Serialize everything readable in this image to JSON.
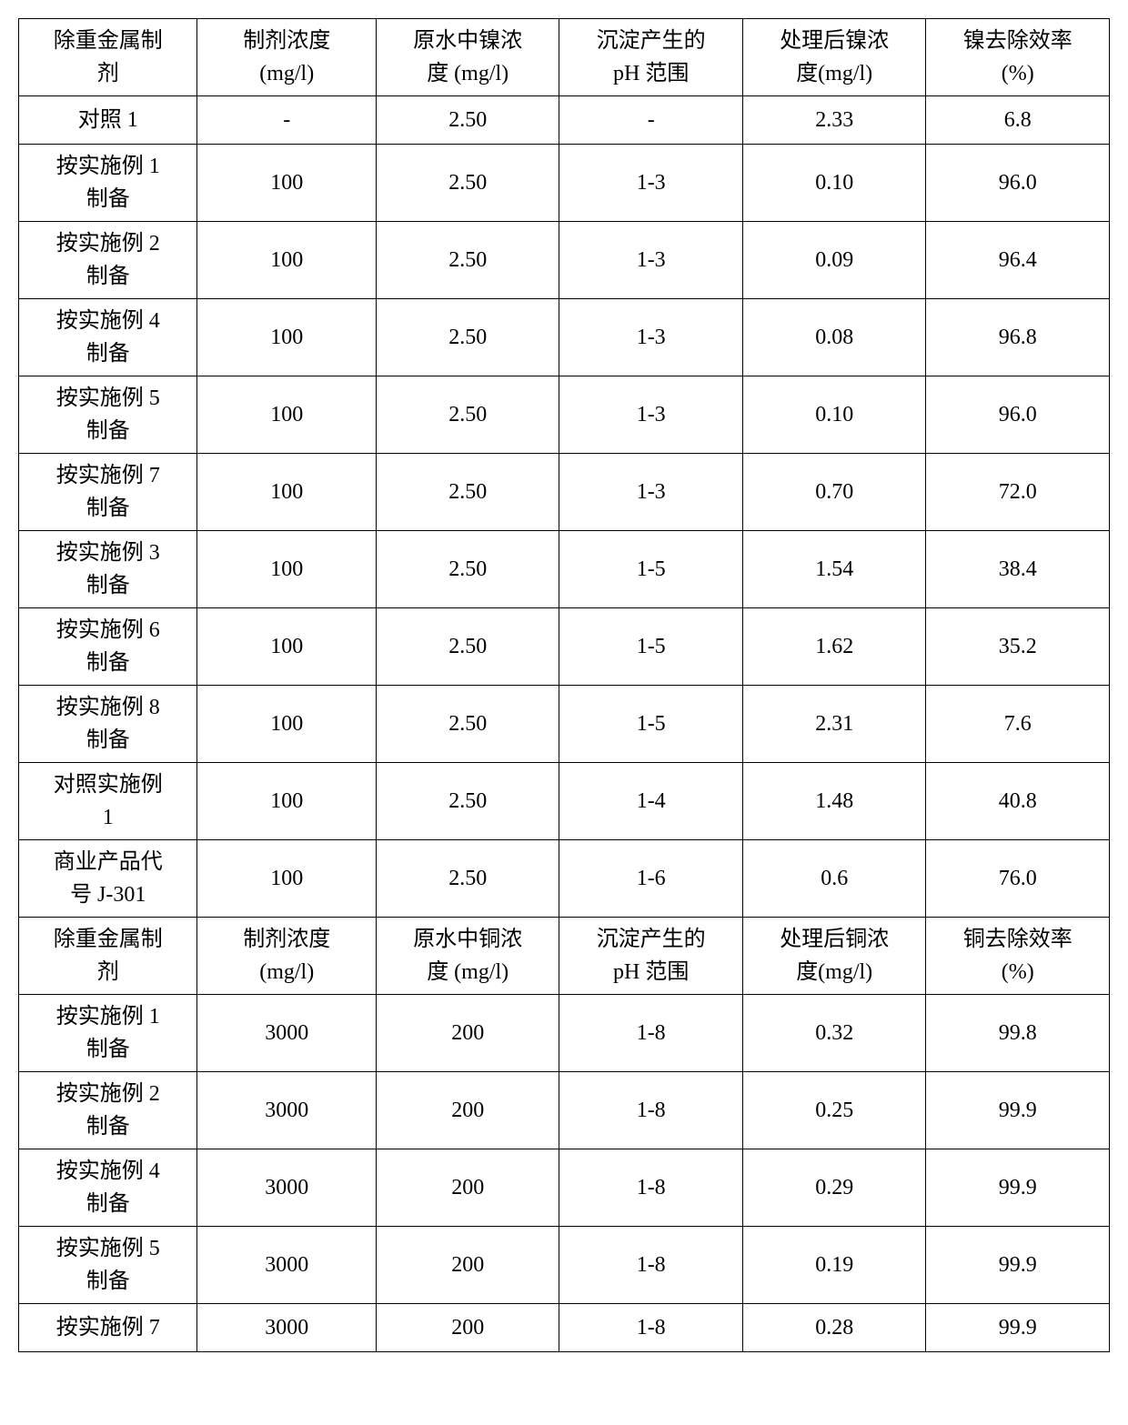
{
  "table": {
    "border_color": "#000000",
    "background_color": "#ffffff",
    "text_color": "#000000",
    "font_size_pt": 18,
    "font_family": "SimSun",
    "cell_align": "center",
    "header1": {
      "c0a": "除重金属制",
      "c0b": "剂",
      "c1a": "制剂浓度",
      "c1b": "(mg/l)",
      "c2a": "原水中镍浓",
      "c2b": "度  (mg/l)",
      "c3a": "沉淀产生的",
      "c3b": "pH 范围",
      "c4a": "处理后镍浓",
      "c4b": "度(mg/l)",
      "c5a": "镍去除效率",
      "c5b": "(%)"
    },
    "rows1": [
      {
        "c0": "对照 1",
        "c1": "-",
        "c2": "2.50",
        "c3": "-",
        "c4": "2.33",
        "c5": "6.8",
        "single": true
      },
      {
        "c0a": "按实施例 1",
        "c0b": "制备",
        "c1": "100",
        "c2": "2.50",
        "c3": "1-3",
        "c4": "0.10",
        "c5": "96.0"
      },
      {
        "c0a": "按实施例 2",
        "c0b": "制备",
        "c1": "100",
        "c2": "2.50",
        "c3": "1-3",
        "c4": "0.09",
        "c5": "96.4"
      },
      {
        "c0a": "按实施例 4",
        "c0b": "制备",
        "c1": "100",
        "c2": "2.50",
        "c3": "1-3",
        "c4": "0.08",
        "c5": "96.8"
      },
      {
        "c0a": "按实施例 5",
        "c0b": "制备",
        "c1": "100",
        "c2": "2.50",
        "c3": "1-3",
        "c4": "0.10",
        "c5": "96.0"
      },
      {
        "c0a": "按实施例 7",
        "c0b": "制备",
        "c1": "100",
        "c2": "2.50",
        "c3": "1-3",
        "c4": "0.70",
        "c5": "72.0"
      },
      {
        "c0a": "按实施例 3",
        "c0b": "制备",
        "c1": "100",
        "c2": "2.50",
        "c3": "1-5",
        "c4": "1.54",
        "c5": "38.4"
      },
      {
        "c0a": "按实施例 6",
        "c0b": "制备",
        "c1": "100",
        "c2": "2.50",
        "c3": "1-5",
        "c4": "1.62",
        "c5": "35.2"
      },
      {
        "c0a": "按实施例 8",
        "c0b": "制备",
        "c1": "100",
        "c2": "2.50",
        "c3": "1-5",
        "c4": "2.31",
        "c5": "7.6"
      },
      {
        "c0a": "对照实施例",
        "c0b": "1",
        "c1": "100",
        "c2": "2.50",
        "c3": "1-4",
        "c4": "1.48",
        "c5": "40.8"
      },
      {
        "c0a": "商业产品代",
        "c0b": "号 J-301",
        "c1": "100",
        "c2": "2.50",
        "c3": "1-6",
        "c4": "0.6",
        "c5": "76.0"
      }
    ],
    "header2": {
      "c0a": "除重金属制",
      "c0b": "剂",
      "c1a": "制剂浓度",
      "c1b": "(mg/l)",
      "c2a": "原水中铜浓",
      "c2b": "度  (mg/l)",
      "c3a": "沉淀产生的",
      "c3b": "pH 范围",
      "c4a": "处理后铜浓",
      "c4b": "度(mg/l)",
      "c5a": "铜去除效率",
      "c5b": "(%)"
    },
    "rows2": [
      {
        "c0a": "按实施例 1",
        "c0b": "制备",
        "c1": "3000",
        "c2": "200",
        "c3": "1-8",
        "c4": "0.32",
        "c5": "99.8"
      },
      {
        "c0a": "按实施例 2",
        "c0b": "制备",
        "c1": "3000",
        "c2": "200",
        "c3": "1-8",
        "c4": "0.25",
        "c5": "99.9"
      },
      {
        "c0a": "按实施例 4",
        "c0b": "制备",
        "c1": "3000",
        "c2": "200",
        "c3": "1-8",
        "c4": "0.29",
        "c5": "99.9"
      },
      {
        "c0a": "按实施例 5",
        "c0b": "制备",
        "c1": "3000",
        "c2": "200",
        "c3": "1-8",
        "c4": "0.19",
        "c5": "99.9"
      },
      {
        "c0": "按实施例 7",
        "c1": "3000",
        "c2": "200",
        "c3": "1-8",
        "c4": "0.28",
        "c5": "99.9",
        "single": true
      }
    ]
  }
}
